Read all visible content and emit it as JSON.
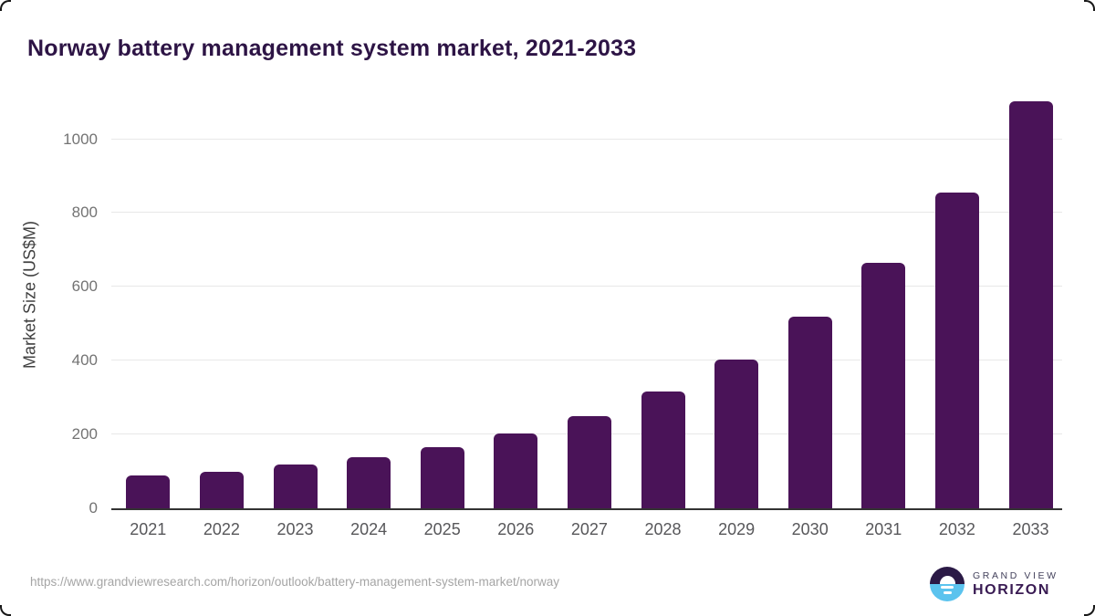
{
  "header": {
    "title": "Norway battery management system market, 2021-2033"
  },
  "chart_data": {
    "type": "bar",
    "title": "Norway battery management system market, 2021-2033",
    "categories": [
      "2021",
      "2022",
      "2023",
      "2024",
      "2025",
      "2026",
      "2027",
      "2028",
      "2029",
      "2030",
      "2031",
      "2032",
      "2033"
    ],
    "values": [
      88,
      100,
      119,
      139,
      166,
      203,
      250,
      316,
      403,
      519,
      665,
      856,
      1103
    ],
    "unit": "US$M",
    "xlabel": "",
    "ylabel": "Market Size (US$M)",
    "yticks": [
      0,
      200,
      400,
      600,
      800,
      1000
    ],
    "ylim": [
      0,
      1130
    ],
    "grid": "horizontal-light",
    "legend": "none",
    "bar_color": "#4a1358"
  },
  "footer": {
    "source_url": "https://www.grandviewresearch.com/horizon/outlook/battery-management-system-market/norway",
    "logo": {
      "line1": "GRAND VIEW",
      "line2": "HORIZON"
    }
  },
  "colors": {
    "title_text": "#2d1445",
    "bar_fill": "#4a1358",
    "gridline": "#e8e8e8",
    "axis_line": "#333333",
    "tick_text": "#6e6e6e",
    "url_text": "#a5a5a5",
    "logo_navy": "#2b1a46",
    "logo_blue": "#5bc3ee"
  }
}
